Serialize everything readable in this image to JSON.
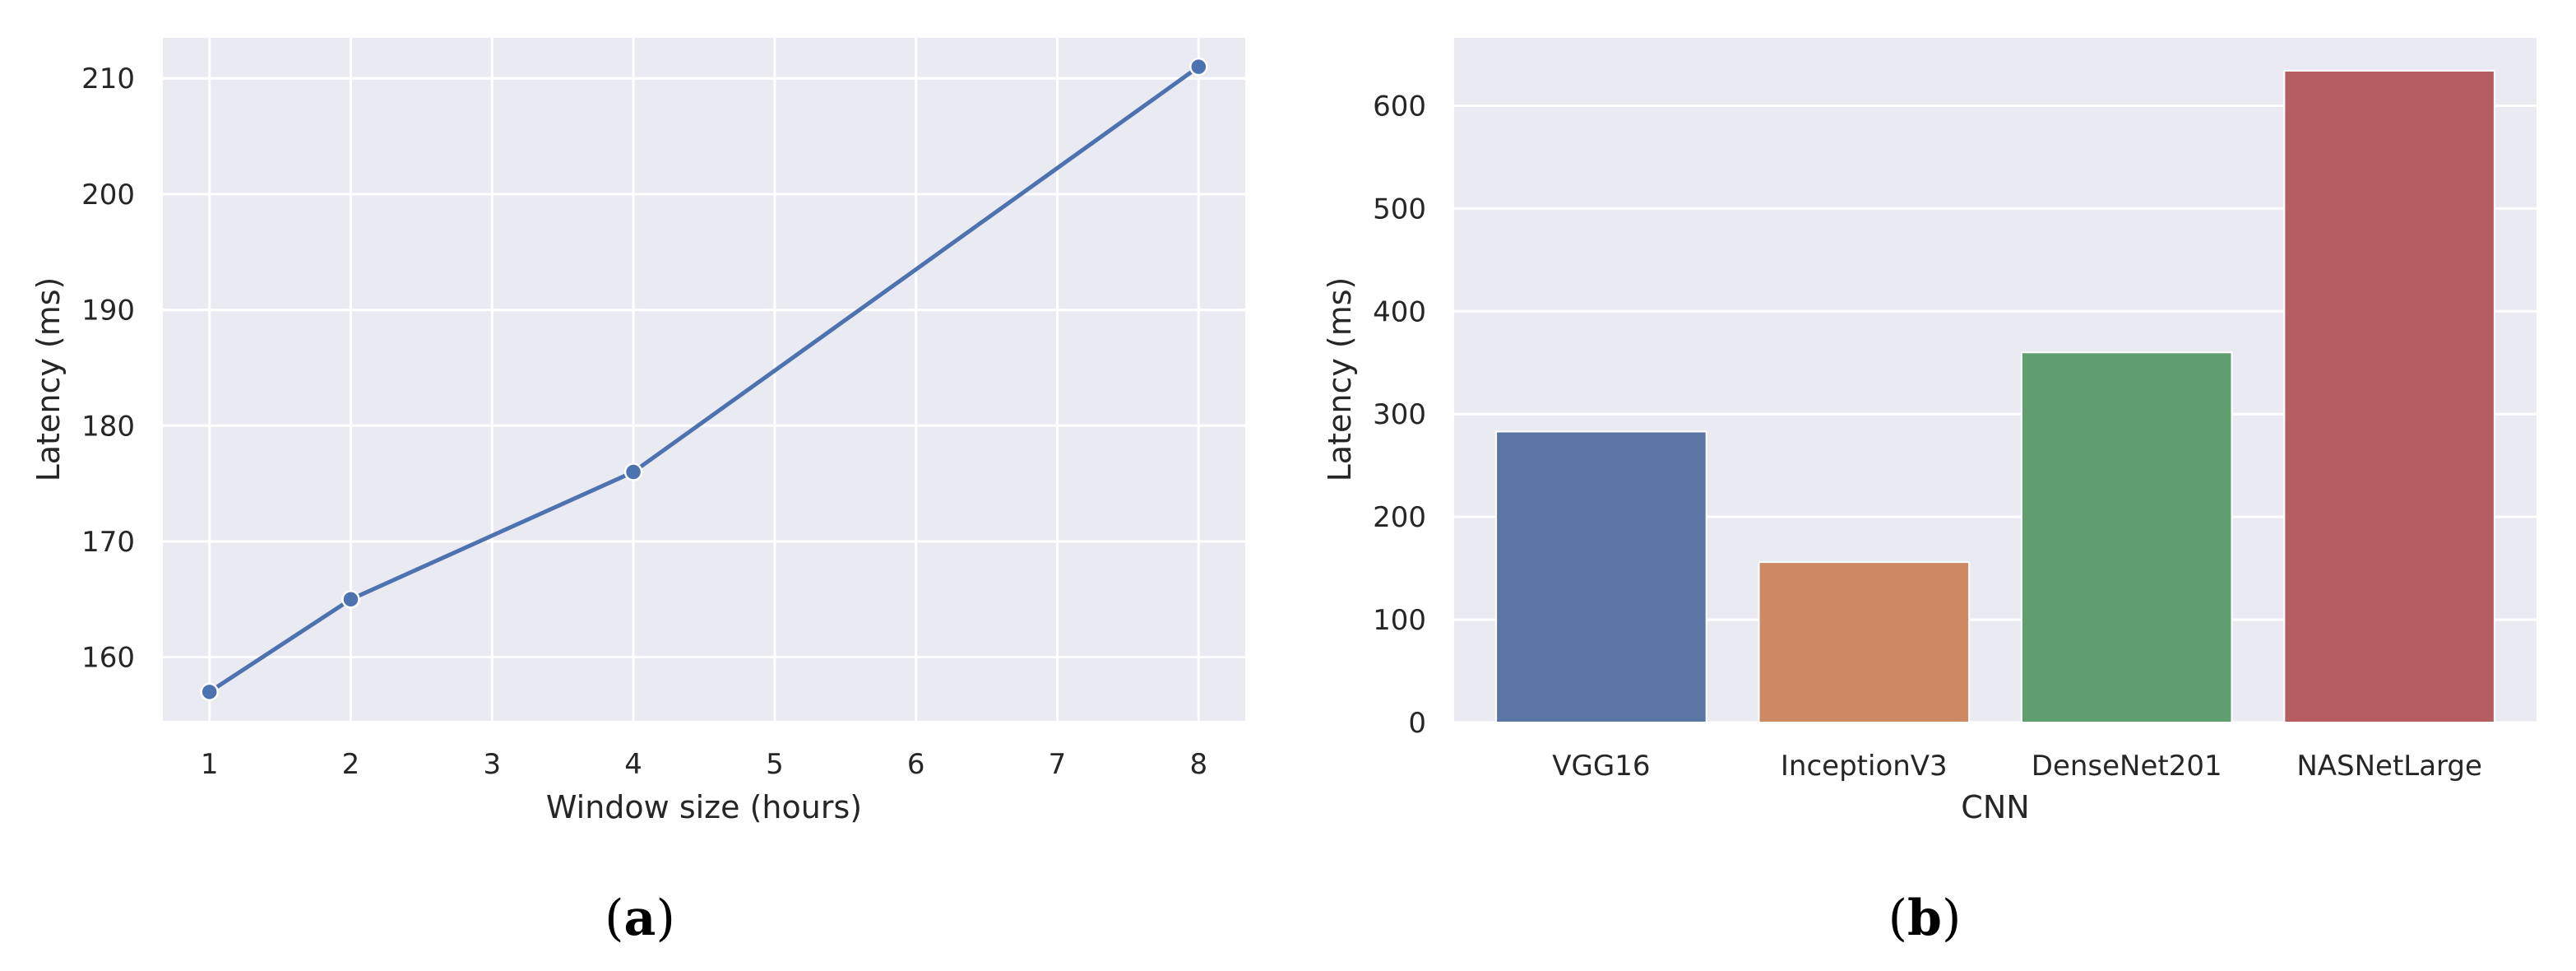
{
  "panels": [
    {
      "letter": "a",
      "open": "(",
      "close": ")"
    },
    {
      "letter": "b",
      "open": "(",
      "close": ")"
    }
  ],
  "chart_data": [
    {
      "type": "line",
      "title": "",
      "xlabel": "Window size (hours)",
      "ylabel": "Latency (ms)",
      "x": [
        1,
        2,
        4,
        8
      ],
      "y": [
        157,
        165,
        176,
        211
      ],
      "xticks": [
        1,
        2,
        3,
        4,
        5,
        6,
        7,
        8
      ],
      "yticks": [
        160,
        170,
        180,
        190,
        200,
        210
      ],
      "xlim": [
        0.67,
        8.33
      ],
      "ylim": [
        154.5,
        213.5
      ],
      "grid": true,
      "color": "#4c72b0"
    },
    {
      "type": "bar",
      "title": "",
      "xlabel": "CNN",
      "ylabel": "Latency (ms)",
      "categories": [
        "VGG16",
        "InceptionV3",
        "DenseNet201",
        "NASNetLarge"
      ],
      "values": [
        283,
        156,
        360,
        634
      ],
      "yticks": [
        0,
        100,
        200,
        300,
        400,
        500,
        600
      ],
      "ylim": [
        0,
        666
      ],
      "grid": true,
      "colors": [
        "#5975a4",
        "#cc8963",
        "#5f9e6e",
        "#b55d60"
      ]
    }
  ]
}
